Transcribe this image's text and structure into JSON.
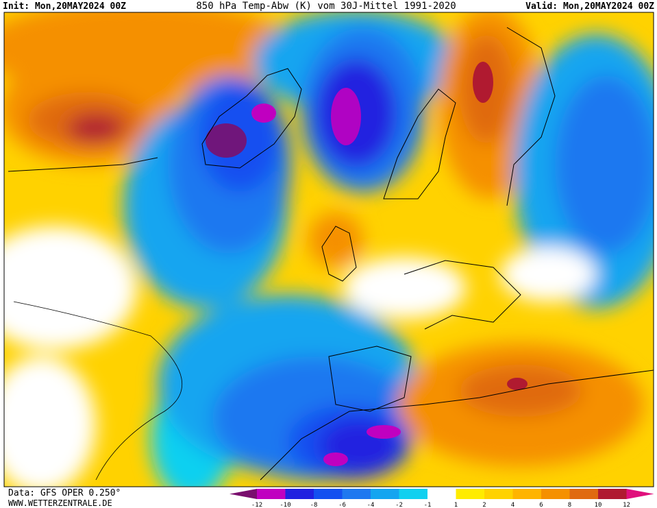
{
  "header": {
    "init": "Init: Mon,20MAY2024 00Z",
    "title": "850 hPa Temp-Abw (K) vom 30J-Mittel 1991-2020",
    "valid": "Valid: Mon,20MAY2024 00Z"
  },
  "footer": {
    "source": "Data: GFS OPER 0.250°",
    "website": "WWW.WETTERZENTRALE.DE"
  },
  "legend": {
    "ticks": [
      -12,
      -10,
      -8,
      -6,
      -4,
      -2,
      -1,
      1,
      2,
      4,
      6,
      8,
      10,
      12
    ],
    "colors": [
      "#7a0f6e",
      "#c000c0",
      "#2020e0",
      "#1450f0",
      "#1e78f0",
      "#14a5f0",
      "#10d0f0",
      "#ffffff",
      "#ffec00",
      "#ffd200",
      "#ffb400",
      "#f59000",
      "#e06a10",
      "#b01a30",
      "#e0107c"
    ]
  }
}
